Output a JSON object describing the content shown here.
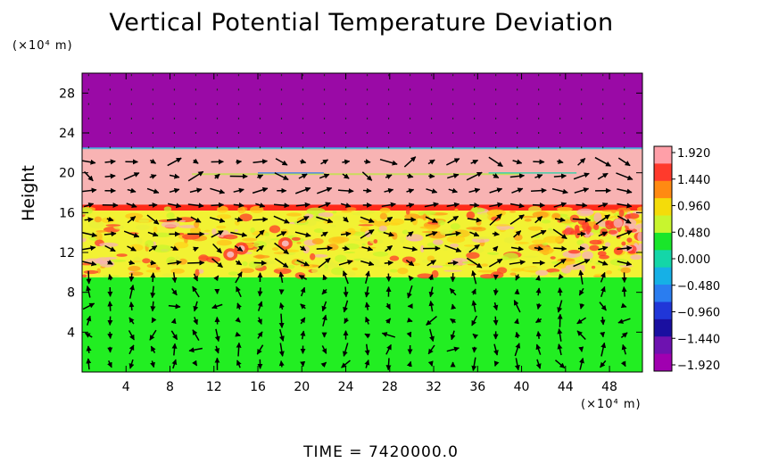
{
  "chart_data": {
    "type": "heatmap",
    "title": "Vertical Potential Temperature Deviation",
    "ylabel": "Height",
    "y_unit": "(×10⁴ m)",
    "x_unit": "(×10⁴ m)",
    "time_label": "TIME  =  7420000.0",
    "xlim": [
      0,
      51
    ],
    "ylim": [
      0,
      30
    ],
    "x_ticks": [
      4,
      8,
      12,
      16,
      20,
      24,
      28,
      32,
      36,
      40,
      44,
      48
    ],
    "x_tick_labels": [
      "4",
      "8",
      "12",
      "16",
      "20",
      "24",
      "28",
      "32",
      "36",
      "40",
      "44",
      "48"
    ],
    "y_ticks": [
      4,
      8,
      12,
      16,
      20,
      24,
      28
    ],
    "y_tick_labels": [
      "4",
      "8",
      "12",
      "16",
      "20",
      "24",
      "28"
    ],
    "colorbar": {
      "levels": [
        1.92,
        1.44,
        0.96,
        0.48,
        0.0,
        -0.48,
        -0.96,
        -1.44,
        -1.92
      ],
      "labels": [
        "1.920",
        "1.440",
        "0.960",
        "0.480",
        "0.000",
        "−0.480",
        "−0.960",
        "−1.440",
        "−1.920"
      ],
      "colors": [
        "#ff9fa8",
        "#ff3a2c",
        "#ff8a12",
        "#f4dc0a",
        "#c8f52e",
        "#19e62a",
        "#14d6a8",
        "#16b0e6",
        "#2a7df0",
        "#2036d8",
        "#1a0fa0",
        "#6e12b0",
        "#a000b0"
      ]
    },
    "bands": [
      {
        "from": 22.5,
        "to": 30,
        "value": -1.92,
        "color": "#9a0aa6"
      },
      {
        "from": 16.8,
        "to": 22.5,
        "value": 1.92,
        "color": "#f8b3b3"
      },
      {
        "from": 16.2,
        "to": 16.8,
        "value": 1.44,
        "color": "#ff2a18"
      },
      {
        "from": 9.5,
        "to": 16.2,
        "value": 0.8,
        "color": "#f2f233"
      },
      {
        "from": 0,
        "to": 9.5,
        "value": 0.0,
        "color": "#22ee22"
      }
    ],
    "vector_field": "wind arrows over the domain"
  }
}
